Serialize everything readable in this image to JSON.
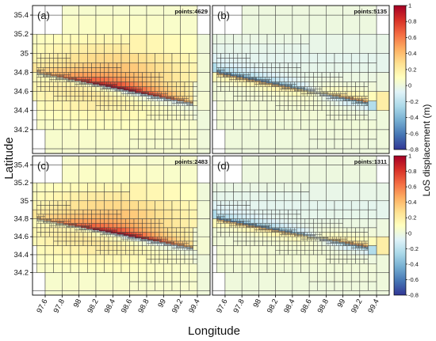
{
  "chart_data": {
    "type": "heatmap",
    "x_axis": {
      "label": "Longitude",
      "range": [
        97.45,
        99.55
      ],
      "ticks": [
        "97.6",
        "97.8",
        "98",
        "98.2",
        "98.4",
        "98.6",
        "98.8",
        "99",
        "99.2",
        "99.4"
      ]
    },
    "y_axis": {
      "label": "Latitude",
      "range": [
        33.95,
        35.5
      ],
      "ticks": [
        "34.2",
        "34.4",
        "34.6",
        "34.8",
        "35",
        "35.2",
        "35.4"
      ]
    },
    "colorbar": {
      "label": "LoS displacement (m)",
      "range": [
        -0.8,
        1.0
      ],
      "ticks": [
        "1",
        "0.8",
        "0.6",
        "0.4",
        "0.2",
        "0",
        "-0.2",
        "-0.4",
        "-0.6",
        "-0.8"
      ],
      "colors": [
        "#313695",
        "#4575b4",
        "#74add1",
        "#abd9e9",
        "#e0f3f8",
        "#ffffbf",
        "#fee090",
        "#fdae61",
        "#f46d43",
        "#d73027",
        "#a50026"
      ]
    },
    "panels": [
      {
        "id": "a",
        "label": "(a)",
        "points_label": "points:4629",
        "pattern": "full"
      },
      {
        "id": "b",
        "label": "(b)",
        "points_label": "points:5135",
        "pattern": "residual"
      },
      {
        "id": "c",
        "label": "(c)",
        "points_label": "points:2483",
        "pattern": "full"
      },
      {
        "id": "d",
        "label": "(d)",
        "points_label": "points:1311",
        "pattern": "residual"
      }
    ]
  }
}
